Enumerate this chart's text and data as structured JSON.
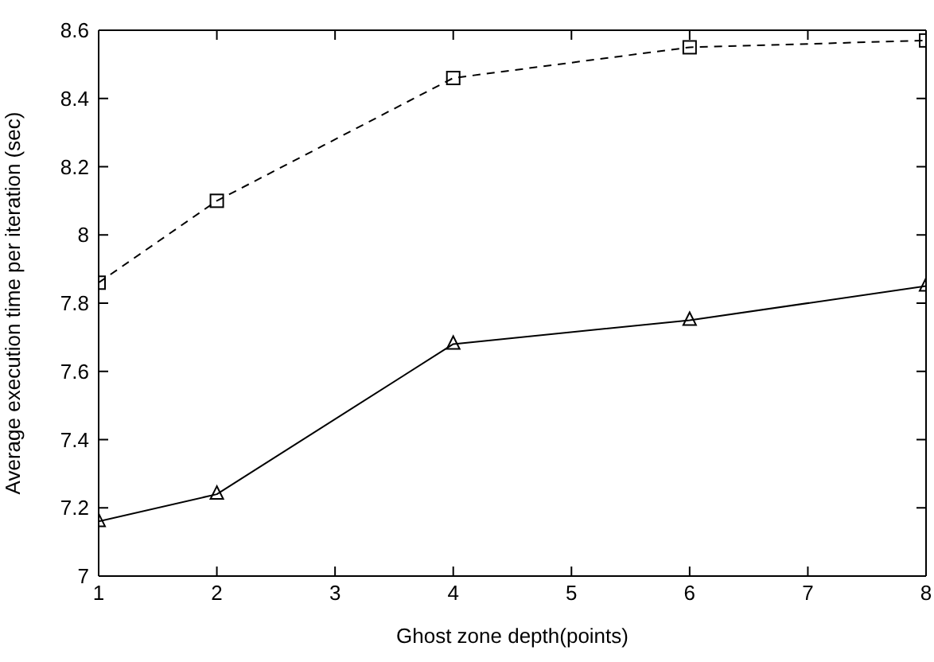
{
  "chart_data": {
    "type": "line",
    "xlabel": "Ghost zone depth(points)",
    "ylabel": "Average execution time per iteration (sec)",
    "x": [
      1,
      2,
      4,
      6,
      8
    ],
    "series": [
      {
        "color": "#000000",
        "values": [
          7.86,
          8.1,
          8.46,
          8.55,
          8.57
        ],
        "marker": "square",
        "line_style": "dashed"
      },
      {
        "color": "#000000",
        "values": [
          7.16,
          7.24,
          7.68,
          7.75,
          7.85
        ],
        "marker": "triangle",
        "line_style": "solid"
      }
    ],
    "xlim": [
      1,
      8
    ],
    "xticks": [
      1,
      2,
      3,
      4,
      5,
      6,
      7,
      8
    ],
    "ylim": [
      7,
      8.6
    ],
    "yticks": [
      7,
      7.2,
      7.4,
      7.6,
      7.8,
      8,
      8.2,
      8.4,
      8.6
    ],
    "grid": false
  }
}
